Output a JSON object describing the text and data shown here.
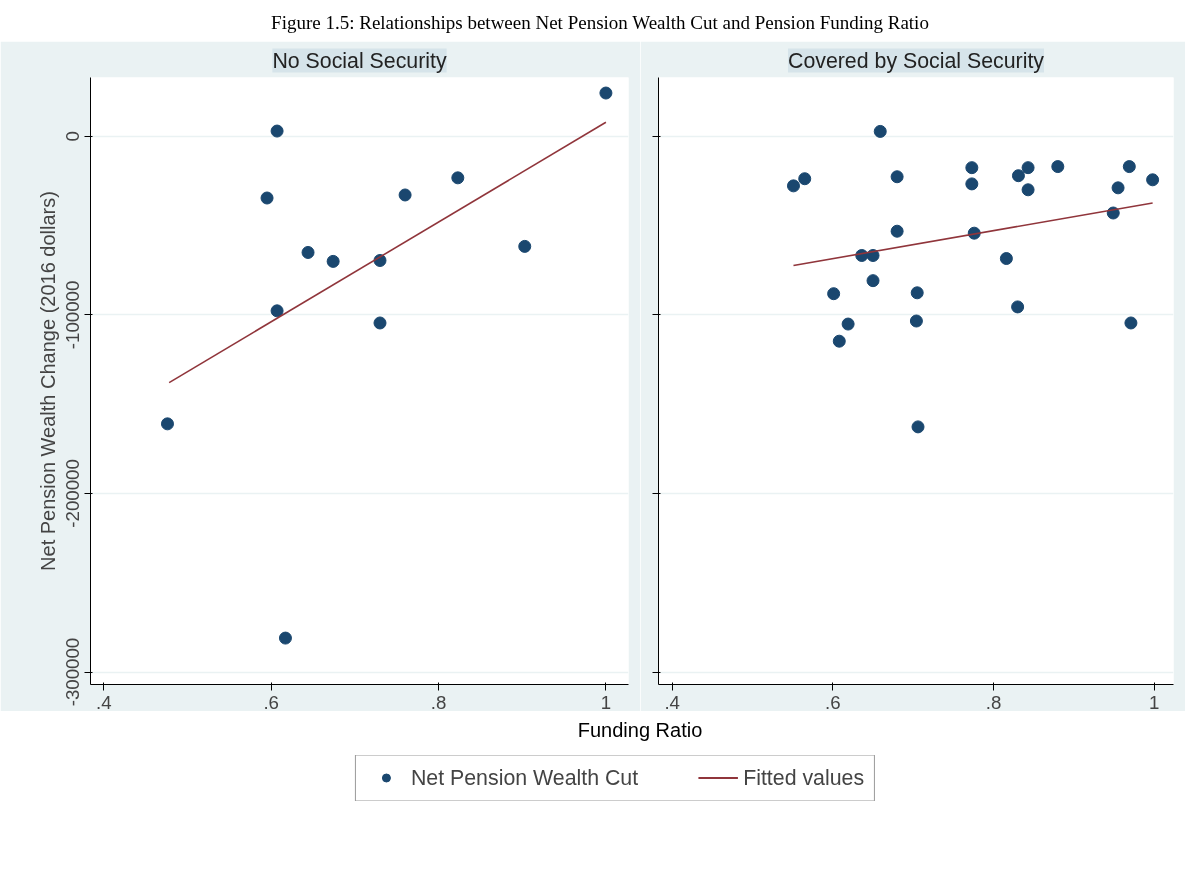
{
  "chart_data": [
    {
      "type": "scatter",
      "title": "Figure 1.5: Relationships between Net Pension Wealth Cut and Pension Funding Ratio",
      "subtitle": "No Social Security",
      "xlabel": "Funding Ratio",
      "ylabel": "Net Pension Wealth Change (2016 dollars)",
      "xlim": [
        0.384,
        1.027
      ],
      "ylim": [
        -307000,
        33000
      ],
      "xticks": [
        {
          "value": 0.4,
          "label": ".4"
        },
        {
          "value": 0.6,
          "label": ".6"
        },
        {
          "value": 0.8,
          "label": ".8"
        },
        1
      ],
      "yticks": [
        {
          "value": -300000,
          "label": "-300000"
        },
        {
          "value": -200000,
          "label": "-200000"
        },
        {
          "value": -100000,
          "label": "-100000"
        },
        {
          "value": 0,
          "label": "0"
        }
      ],
      "grid": "y",
      "legend": "bottom",
      "series": [
        {
          "name": "Net Pension Wealth Cut",
          "color": "#1a476f",
          "marker": "circle",
          "x": [
            0.476,
            0.607,
            0.595,
            0.607,
            0.617,
            0.644,
            0.674,
            0.73,
            0.73,
            0.76,
            0.823,
            0.903,
            1.0
          ],
          "values": [
            -161000,
            3000,
            -34500,
            -97700,
            -281000,
            -65000,
            -70000,
            -69500,
            -104500,
            -32800,
            -23200,
            -61600,
            24300
          ]
        },
        {
          "name": "Fitted values",
          "type": "line",
          "color": "#90353b",
          "x": [
            0.478,
            1.0
          ],
          "values": [
            -137900,
            7900
          ]
        }
      ]
    },
    {
      "type": "scatter",
      "subtitle": "Covered by Social Security",
      "xlim": [
        0.383,
        1.024
      ],
      "ylim": [
        -307000,
        33000
      ],
      "xticks": [
        {
          "value": 0.4,
          "label": ".4"
        },
        {
          "value": 0.6,
          "label": ".6"
        },
        {
          "value": 0.8,
          "label": ".8"
        },
        1
      ],
      "yticks": [
        -300000,
        -200000,
        -100000,
        0
      ],
      "tick_labels": "x",
      "grid": "y",
      "series": [
        {
          "color": "#1a476f",
          "marker": "circle",
          "x": [
            0.551,
            0.565,
            0.659,
            0.68,
            0.68,
            0.636,
            0.65,
            0.65,
            0.601,
            0.619,
            0.608,
            0.705,
            0.704,
            0.706,
            0.773,
            0.773,
            0.776,
            0.816,
            0.831,
            0.843,
            0.843,
            0.83,
            0.88,
            0.949,
            0.955,
            0.969,
            0.971,
            0.998
          ],
          "values": [
            -27700,
            -23700,
            2800,
            -22600,
            -53100,
            -66700,
            -66700,
            -80800,
            -88100,
            -105100,
            -114700,
            -87600,
            -103400,
            -162700,
            -17500,
            -26600,
            -54200,
            -68400,
            -22000,
            -17500,
            -29900,
            -95500,
            -16900,
            -42900,
            -28800,
            -16900,
            -104500,
            -24300
          ]
        },
        {
          "type": "line",
          "color": "#90353b",
          "x": [
            0.551,
            0.998
          ],
          "values": [
            -72300,
            -37300
          ]
        }
      ]
    }
  ]
}
